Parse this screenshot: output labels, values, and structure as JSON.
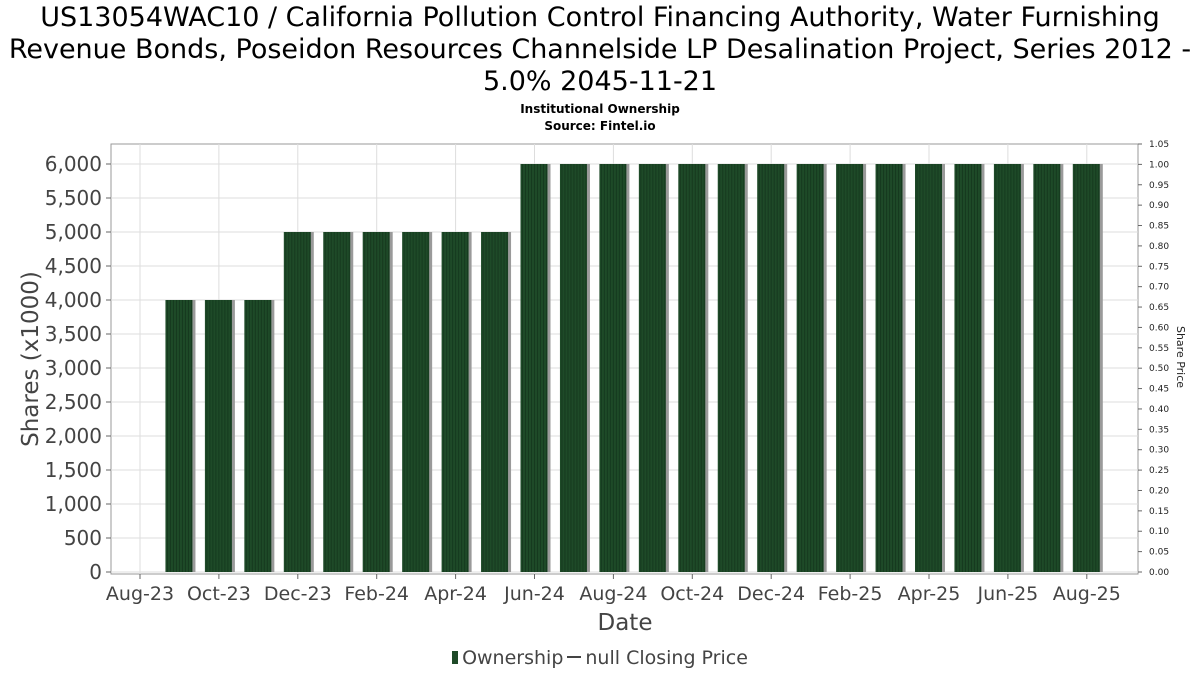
{
  "title": "US13054WAC10 / California Pollution Control Financing Authority, Water Furnishing Revenue Bonds, Poseidon Resources Channelside LP Desalination Project, Series 2012 - 5.0% 2045-11-21",
  "subtitle": "Institutional Ownership",
  "source": "Source: Fintel.io",
  "legend": {
    "ownership": "Ownership",
    "price": "null Closing Price"
  },
  "colors": {
    "bar": "#1e4a28",
    "bar_shadow": "#9a9a9a",
    "grid": "#dddddd"
  },
  "chart_data": {
    "type": "bar",
    "xlabel": "Date",
    "ylabel": "Shares (x1000)",
    "ylabel_right": "Share Price",
    "ylim": [
      0,
      6000
    ],
    "ylim_right": [
      0,
      1.05
    ],
    "yticks": [
      "0",
      "500",
      "1,000",
      "1,500",
      "2,000",
      "2,500",
      "3,000",
      "3,500",
      "4,000",
      "4,500",
      "5,000",
      "5,500",
      "6,000"
    ],
    "yticks_right": [
      "0.00",
      "0.05",
      "0.10",
      "0.15",
      "0.20",
      "0.25",
      "0.30",
      "0.35",
      "0.40",
      "0.45",
      "0.50",
      "0.55",
      "0.60",
      "0.65",
      "0.70",
      "0.75",
      "0.80",
      "0.85",
      "0.90",
      "0.95",
      "1.00",
      "1.05"
    ],
    "xticks": [
      "Aug-23",
      "Oct-23",
      "Dec-23",
      "Feb-24",
      "Apr-24",
      "Jun-24",
      "Aug-24",
      "Oct-24",
      "Dec-24",
      "Feb-25",
      "Apr-25",
      "Jun-25",
      "Aug-25"
    ],
    "grid": true,
    "series": [
      {
        "name": "Ownership",
        "categories": [
          "2023-09",
          "2023-10",
          "2023-11",
          "2023-12",
          "2024-01",
          "2024-02",
          "2024-03",
          "2024-04",
          "2024-05",
          "2024-06",
          "2024-07",
          "2024-08",
          "2024-09",
          "2024-10",
          "2024-11",
          "2024-12",
          "2025-01",
          "2025-02",
          "2025-03",
          "2025-04",
          "2025-05",
          "2025-06",
          "2025-07",
          "2025-08"
        ],
        "values": [
          4000,
          4000,
          4000,
          5000,
          5000,
          5000,
          5000,
          5000,
          5000,
          6000,
          6000,
          6000,
          6000,
          6000,
          6000,
          6000,
          6000,
          6000,
          6000,
          6000,
          6000,
          6000,
          6000,
          6000
        ]
      }
    ]
  }
}
